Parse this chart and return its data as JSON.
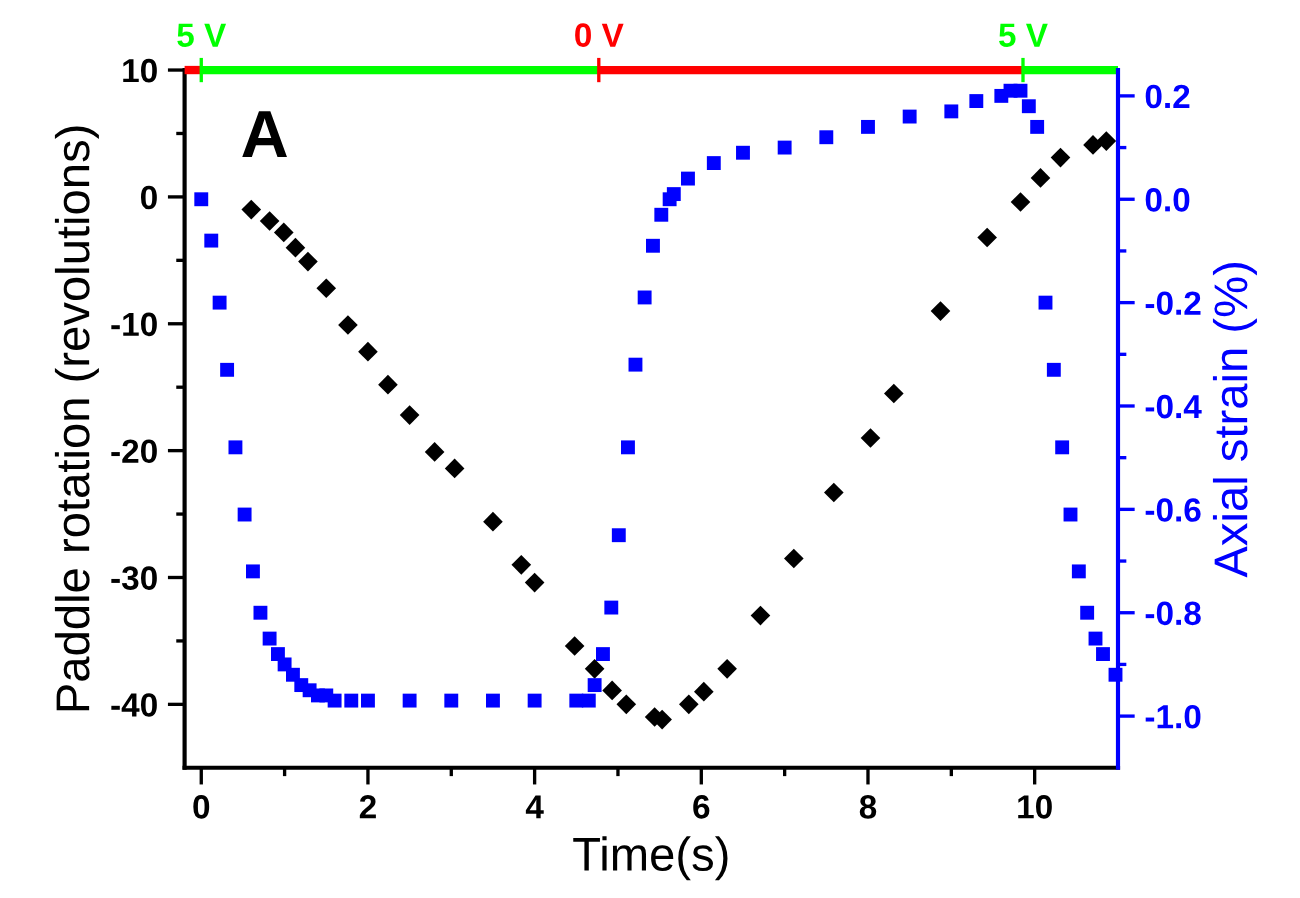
{
  "chart_data": {
    "type": "scatter",
    "xlabel": "Time(s)",
    "ylabel": "Paddle rotation (revolutions)",
    "y2label": "Axial strain (%)",
    "annotations": [
      "A"
    ],
    "xlim": [
      -0.2,
      11
    ],
    "xticks": [
      0,
      {
        "value": 1,
        "label": null
      },
      2,
      {
        "value": 3,
        "label": null
      },
      4,
      {
        "value": 5,
        "label": null
      },
      6,
      {
        "value": 7,
        "label": null
      },
      8,
      {
        "value": 9,
        "label": null
      },
      10
    ],
    "ylim": [
      -45,
      10
    ],
    "yticks": [
      -40,
      {
        "value": -35,
        "label": null
      },
      -30,
      {
        "value": -25,
        "label": null
      },
      -20,
      {
        "value": -15,
        "label": null
      },
      -10,
      {
        "value": -5,
        "label": null
      },
      0,
      {
        "value": 5,
        "label": null
      },
      10
    ],
    "y2lim": [
      -1.1,
      0.25
    ],
    "y2ticks": [
      {
        "value": -1.0,
        "label": "-1.0"
      },
      {
        "value": -0.9,
        "label": null
      },
      -0.8,
      {
        "value": -0.7,
        "label": null
      },
      -0.6,
      {
        "value": -0.5,
        "label": null
      },
      -0.4,
      {
        "value": -0.3,
        "label": null
      },
      -0.2,
      {
        "value": -0.1,
        "label": null
      },
      {
        "value": 0.0,
        "label": "0.0"
      },
      {
        "value": 0.1,
        "label": null
      },
      0.2
    ],
    "ref_lines": [
      {
        "axis": "x",
        "value": 0,
        "label": "5 V",
        "color": "#00ff00"
      },
      {
        "axis": "x",
        "value": 4.77,
        "label": "0 V",
        "color": "#ff0000"
      },
      {
        "axis": "x",
        "value": 9.86,
        "label": "5 V",
        "color": "#00ff00"
      }
    ],
    "grid": false,
    "legend": false,
    "series": [
      {
        "color": "#000000",
        "marker": "diamond",
        "x": [
          0.6,
          0.82,
          0.99,
          1.13,
          1.28,
          1.5,
          1.76,
          2.0,
          2.24,
          2.5,
          2.8,
          3.04,
          3.5,
          3.84,
          4.0,
          4.48,
          4.72,
          4.93,
          5.1,
          5.44,
          5.53,
          5.85,
          6.03,
          6.31,
          6.71,
          7.11,
          7.59,
          8.03,
          8.31,
          8.87,
          9.43,
          9.83,
          10.07,
          10.31,
          10.7,
          10.86
        ],
        "values": [
          -1.0,
          -1.9,
          -2.8,
          -4.0,
          -5.1,
          -7.2,
          -10.1,
          -12.2,
          -14.8,
          -17.2,
          -20.1,
          -21.4,
          -25.6,
          -29.0,
          -30.4,
          -35.4,
          -37.2,
          -38.9,
          -40.0,
          -41.0,
          -41.2,
          -40.0,
          -39.0,
          -37.2,
          -33.0,
          -28.5,
          -23.3,
          -19.0,
          -15.5,
          -9.0,
          -3.2,
          -0.4,
          1.5,
          3.1,
          4.1,
          4.4
        ]
      },
      {
        "color": "#0000ff",
        "marker": "square",
        "axis": "y2",
        "x": [
          0,
          0.12,
          0.22,
          0.31,
          0.41,
          0.52,
          0.62,
          0.71,
          0.82,
          0.92,
          1.0,
          1.1,
          1.2,
          1.3,
          1.4,
          1.5,
          1.6,
          1.8,
          2.0,
          2.5,
          3.0,
          3.5,
          4.0,
          4.5,
          4.65,
          4.72,
          4.82,
          4.92,
          5.01,
          5.12,
          5.21,
          5.32,
          5.42,
          5.52,
          5.62,
          5.67,
          5.84,
          6.15,
          6.5,
          7.0,
          7.5,
          8.0,
          8.5,
          9.0,
          9.3,
          9.6,
          9.71,
          9.83,
          9.93,
          10.03,
          10.13,
          10.23,
          10.33,
          10.43,
          10.53,
          10.63,
          10.73,
          10.82,
          10.97
        ],
        "values": [
          0.0,
          -0.08,
          -0.2,
          -0.33,
          -0.48,
          -0.61,
          -0.72,
          -0.8,
          -0.85,
          -0.88,
          -0.9,
          -0.92,
          -0.94,
          -0.95,
          -0.96,
          -0.96,
          -0.97,
          -0.97,
          -0.97,
          -0.97,
          -0.97,
          -0.97,
          -0.97,
          -0.97,
          -0.97,
          -0.94,
          -0.88,
          -0.79,
          -0.65,
          -0.48,
          -0.32,
          -0.19,
          -0.09,
          -0.03,
          0.0,
          0.01,
          0.04,
          0.07,
          0.09,
          0.1,
          0.12,
          0.14,
          0.16,
          0.17,
          0.19,
          0.2,
          0.21,
          0.21,
          0.18,
          0.14,
          -0.2,
          -0.33,
          -0.48,
          -0.61,
          -0.72,
          -0.8,
          -0.85,
          -0.88,
          -0.92
        ]
      }
    ]
  }
}
